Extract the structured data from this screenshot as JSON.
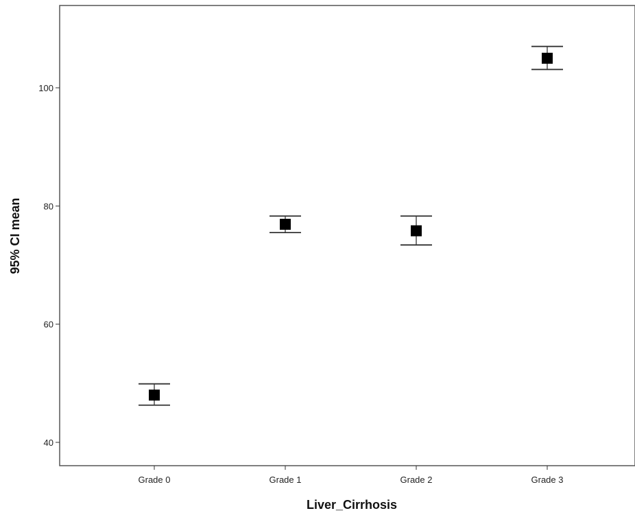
{
  "chart_data": {
    "type": "scatter",
    "title": "",
    "xlabel": "Liver_Cirrhosis",
    "ylabel": "95% CI mean",
    "categories": [
      "Grade 0",
      "Grade 1",
      "Grade 2",
      "Grade 3"
    ],
    "series": [
      {
        "values": [
          48.0,
          76.9,
          75.8,
          105.0
        ],
        "ci_lower": [
          46.3,
          75.5,
          73.4,
          103.1
        ],
        "ci_upper": [
          49.9,
          78.3,
          78.3,
          107.0
        ]
      }
    ],
    "ylim": [
      36,
      115
    ],
    "yticks": [
      40,
      60,
      80,
      100
    ],
    "grid": false,
    "legend": "none"
  }
}
